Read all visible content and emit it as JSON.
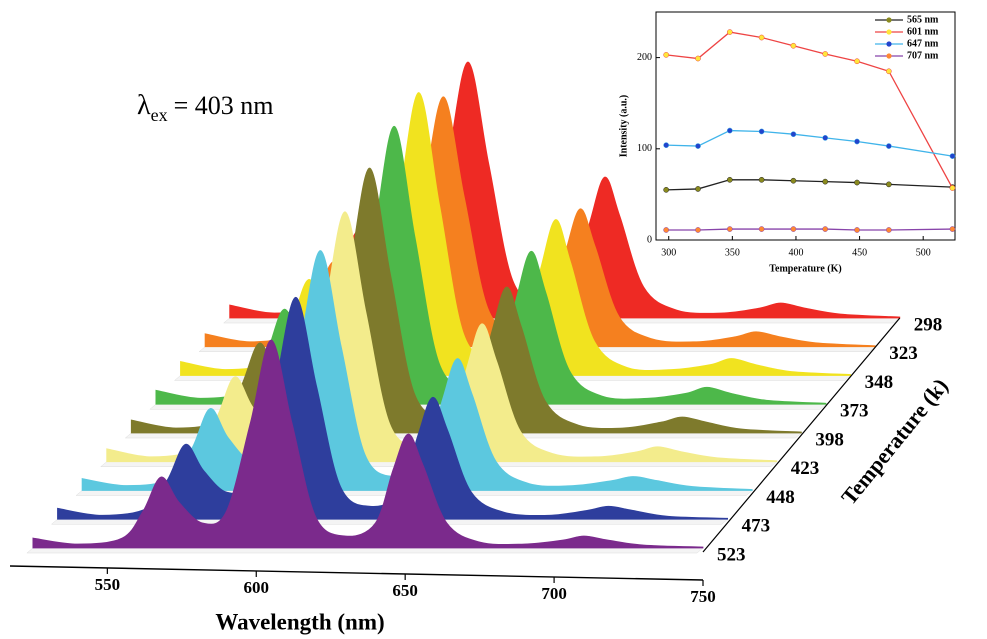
{
  "chart_data": [
    {
      "type": "waterfall",
      "annotation": {
        "symbol": "λ",
        "subscript": "ex",
        "text": "= 403 nm"
      },
      "xlabel": "Wavelength (nm)",
      "zlabel": "Temperature (k)",
      "xlim": [
        520,
        750
      ],
      "xticks": [
        550,
        600,
        650,
        700,
        750
      ],
      "x": [
        525,
        540,
        555,
        562,
        568,
        574,
        582,
        590,
        598,
        605,
        612,
        620,
        630,
        640,
        646,
        651,
        656,
        664,
        675,
        690,
        703,
        710,
        718,
        730,
        750
      ],
      "series": [
        {
          "name": "298",
          "color": "#ee2a24",
          "values": [
            13,
            5,
            13,
            46,
            87,
            56,
            31,
            46,
            154,
            256,
            154,
            38,
            15,
            31,
            97,
            141,
            102,
            31,
            8,
            5,
            10,
            15,
            10,
            4,
            1
          ]
        },
        {
          "name": "323",
          "color": "#f5801f",
          "values": [
            13,
            5,
            13,
            45,
            85,
            55,
            30,
            45,
            150,
            250,
            150,
            38,
            15,
            30,
            95,
            138,
            100,
            30,
            8,
            5,
            10,
            15,
            10,
            4,
            1
          ]
        },
        {
          "name": "348",
          "color": "#f1e31f",
          "values": [
            14,
            6,
            14,
            51,
            96,
            62,
            34,
            51,
            170,
            283,
            170,
            42,
            17,
            34,
            108,
            156,
            113,
            34,
            8,
            6,
            11,
            17,
            11,
            4,
            1
          ]
        },
        {
          "name": "373",
          "color": "#4db84a",
          "values": [
            14,
            6,
            14,
            50,
            95,
            61,
            33,
            50,
            167,
            278,
            167,
            42,
            17,
            33,
            106,
            153,
            111,
            33,
            8,
            6,
            11,
            17,
            11,
            4,
            1
          ]
        },
        {
          "name": "398",
          "color": "#7e7a2c",
          "values": [
            13,
            5,
            13,
            48,
            90,
            58,
            32,
            48,
            159,
            265,
            159,
            40,
            16,
            32,
            101,
            146,
            106,
            32,
            8,
            5,
            11,
            16,
            11,
            4,
            1
          ]
        },
        {
          "name": "423",
          "color": "#f3ec8c",
          "values": [
            13,
            5,
            13,
            45,
            85,
            55,
            30,
            45,
            150,
            250,
            150,
            38,
            15,
            30,
            95,
            138,
            100,
            30,
            8,
            5,
            10,
            15,
            10,
            4,
            1
          ]
        },
        {
          "name": "448",
          "color": "#5cc8df",
          "values": [
            12,
            5,
            12,
            43,
            82,
            53,
            29,
            43,
            144,
            240,
            144,
            36,
            14,
            29,
            91,
            132,
            96,
            29,
            7,
            5,
            10,
            14,
            10,
            4,
            1
          ]
        },
        {
          "name": "473",
          "color": "#2e3e9d",
          "values": [
            11,
            4,
            11,
            40,
            75,
            49,
            27,
            40,
            133,
            222,
            133,
            33,
            13,
            27,
            84,
            122,
            89,
            27,
            7,
            4,
            9,
            13,
            9,
            3,
            1
          ]
        },
        {
          "name": "523",
          "color": "#7b2a8c",
          "values": [
            10,
            4,
            10,
            37,
            71,
            46,
            25,
            37,
            125,
            208,
            125,
            31,
            12,
            25,
            79,
            114,
            83,
            25,
            6,
            4,
            8,
            12,
            8,
            3,
            1
          ]
        }
      ]
    },
    {
      "type": "line",
      "xlabel": "Temperature (K)",
      "ylabel": "Intensity (a.u.)",
      "xlim": [
        290,
        525
      ],
      "xticks": [
        300,
        350,
        400,
        450,
        500
      ],
      "ylim": [
        0,
        250
      ],
      "yticks": [
        0,
        100,
        200
      ],
      "legend": "upper right",
      "x": [
        298,
        323,
        348,
        373,
        398,
        423,
        448,
        473,
        523
      ],
      "series": [
        {
          "name": "565 nm",
          "color": "#222222",
          "marker_color": "#8a8a1e",
          "values": [
            55,
            56,
            66,
            66,
            65,
            64,
            63,
            61,
            58
          ]
        },
        {
          "name": "601 nm",
          "color": "#ee4444",
          "marker_color": "#ffe63a",
          "values": [
            203,
            199,
            228,
            222,
            213,
            204,
            196,
            185,
            57
          ]
        },
        {
          "name": "647 nm",
          "color": "#40b4ea",
          "marker_color": "#2244cc",
          "values": [
            104,
            103,
            120,
            119,
            116,
            112,
            108,
            103,
            92
          ]
        },
        {
          "name": "707 nm",
          "color": "#8844aa",
          "marker_color": "#ff8833",
          "values": [
            11,
            11,
            12,
            12,
            12,
            12,
            11,
            11,
            12
          ]
        }
      ]
    }
  ]
}
